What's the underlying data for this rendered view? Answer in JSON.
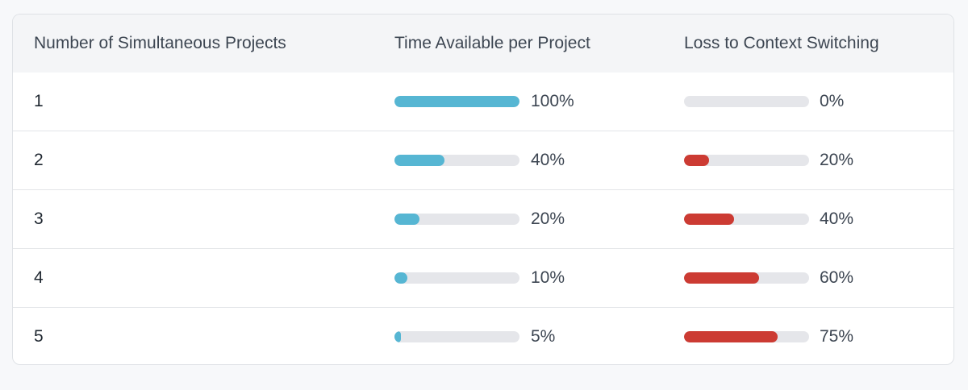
{
  "colors": {
    "time_bar": "#56b6d3",
    "loss_bar": "#cc3b33",
    "track": "#e5e6ea"
  },
  "table": {
    "headers": {
      "projects": "Number of Simultaneous Projects",
      "time": "Time Available per Project",
      "loss": "Loss to Context Switching"
    },
    "rows": [
      {
        "projects": "1",
        "time_label": "100%",
        "time_value": 100,
        "loss_label": "0%",
        "loss_value": 0
      },
      {
        "projects": "2",
        "time_label": "40%",
        "time_value": 40,
        "loss_label": "20%",
        "loss_value": 20
      },
      {
        "projects": "3",
        "time_label": "20%",
        "time_value": 20,
        "loss_label": "40%",
        "loss_value": 40
      },
      {
        "projects": "4",
        "time_label": "10%",
        "time_value": 10,
        "loss_label": "60%",
        "loss_value": 60
      },
      {
        "projects": "5",
        "time_label": "5%",
        "time_value": 5,
        "loss_label": "75%",
        "loss_value": 75
      }
    ]
  }
}
